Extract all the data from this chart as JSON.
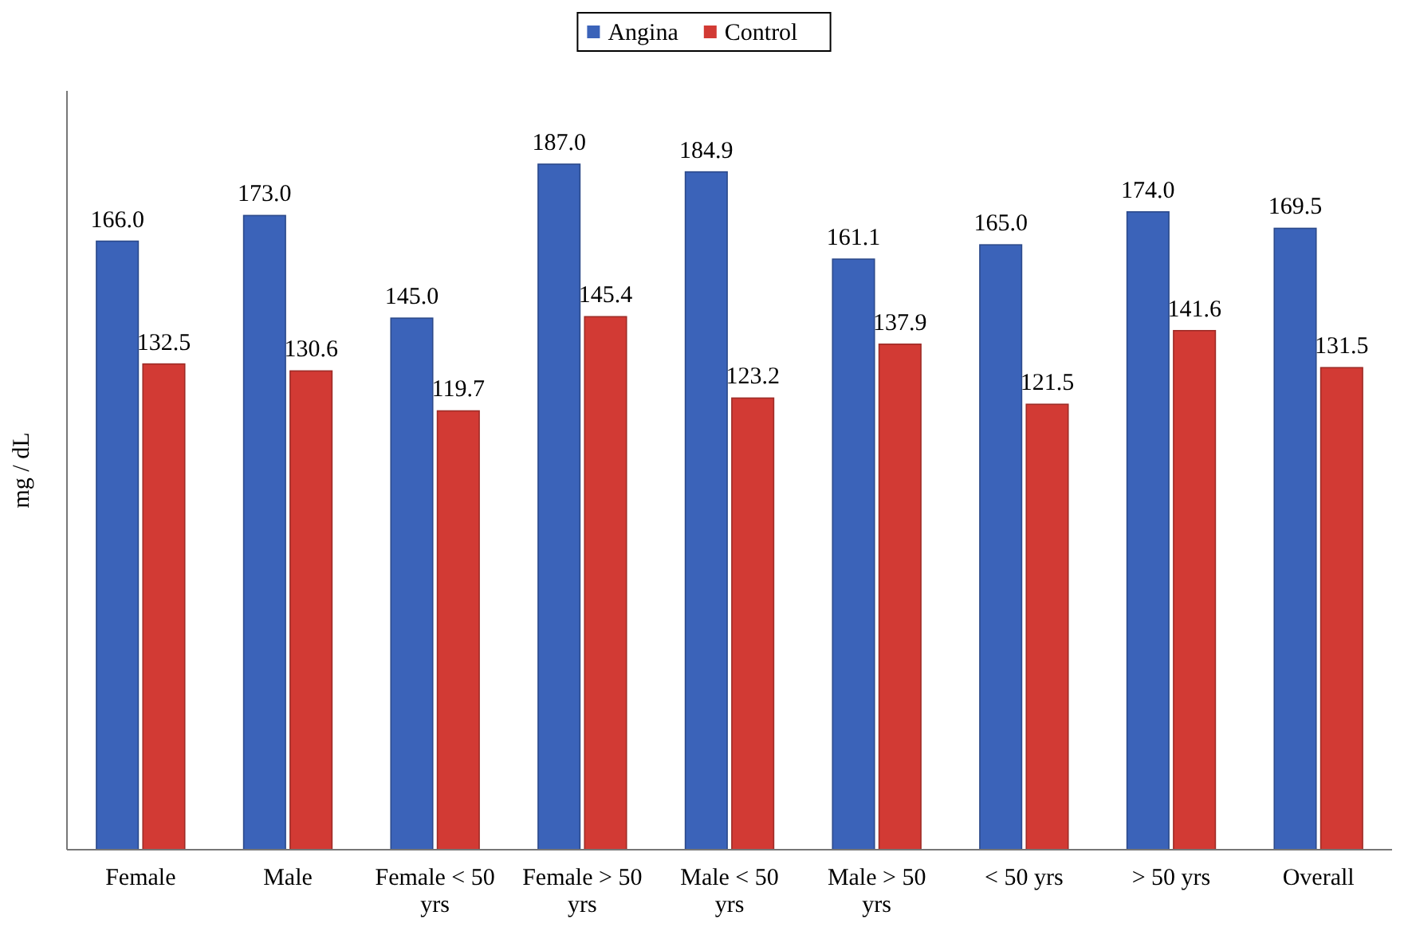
{
  "chart_data": {
    "type": "bar",
    "ylabel": "mg / dL",
    "categories": [
      "Female",
      "Male",
      "Female < 50 yrs",
      "Female > 50 yrs",
      "Male < 50 yrs",
      "Male > 50 yrs",
      "< 50 yrs",
      "> 50 yrs",
      "Overall"
    ],
    "series": [
      {
        "name": "Angina",
        "color": "#3b63b9",
        "values": [
          166.0,
          173.0,
          145.0,
          187.0,
          184.9,
          161.1,
          165.0,
          174.0,
          169.5
        ],
        "value_labels": [
          "166.0",
          "173.0",
          "145.0",
          "187.0",
          "184.9",
          "161.1",
          "165.0",
          "174.0",
          "169.5"
        ]
      },
      {
        "name": "Control",
        "color": "#d23a34",
        "values": [
          132.5,
          130.6,
          119.7,
          145.4,
          123.2,
          137.9,
          121.5,
          141.6,
          131.5
        ],
        "value_labels": [
          "132.5",
          "130.6",
          "119.7",
          "145.4",
          "123.2",
          "137.9",
          "121.5",
          "141.6",
          "131.5"
        ]
      }
    ],
    "ylim": [
      0,
      207
    ],
    "legend": "top",
    "tick_labels": "x",
    "grid": false
  }
}
